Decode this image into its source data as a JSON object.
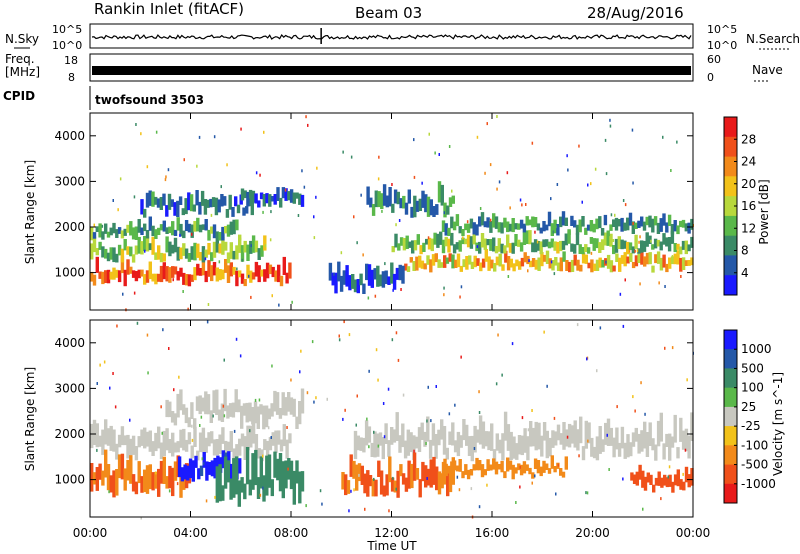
{
  "header": {
    "station": "Rankin Inlet (fitACF)",
    "beam": "Beam 03",
    "date": "28/Aug/2016"
  },
  "top_panels": {
    "nsky_label": "N.Sky",
    "nsearch_label": "N.Search",
    "freq_label_1": "Freq.",
    "freq_label_2": "[MHz]",
    "nave_label": "Nave",
    "cpid_label": "CPID",
    "cpid_value": "twofsound 3503",
    "nsky_ticks": [
      "10^5",
      "10^0"
    ],
    "nsearch_ticks": [
      "10^5",
      "10^0"
    ],
    "freq_ticks": [
      "18",
      "8"
    ],
    "nave_ticks": [
      "60",
      "0"
    ]
  },
  "colors": {
    "power_scale": [
      "#1a1aff",
      "#2458a8",
      "#3a8a66",
      "#5ab84a",
      "#b8d83c",
      "#f2c21a",
      "#f28a1a",
      "#f0501a",
      "#e81a1a"
    ],
    "velocity_scale": [
      "#1a1aff",
      "#2458a8",
      "#3a8a66",
      "#5ab84a",
      "#c8c8c0",
      "#f2c21a",
      "#f28a1a",
      "#f0501a",
      "#e81a1a"
    ],
    "ground_scatter": "#c8c8c0"
  },
  "chart_data": [
    {
      "type": "heatmap",
      "panel": "power",
      "ylabel": "Slant Range [km]",
      "xlabel": "",
      "ylim": [
        180,
        4500
      ],
      "yticks": [
        "1000",
        "2000",
        "3000",
        "4000"
      ],
      "colorbar_label": "Power [dB]",
      "colorbar_ticks": [
        "28",
        "24",
        "20",
        "16",
        "12",
        "8",
        "4"
      ],
      "colorbar_range": [
        0,
        32
      ],
      "x": [
        "00:00",
        "04:00",
        "08:00",
        "12:00",
        "16:00",
        "20:00",
        "00:00"
      ],
      "bands": [
        {
          "t0": 0.0,
          "t1": 8.0,
          "r0": 700,
          "r1": 1200,
          "value": 27
        },
        {
          "t0": 0.0,
          "t1": 7.0,
          "r0": 1200,
          "r1": 1700,
          "value": 14
        },
        {
          "t0": 0.0,
          "t1": 6.0,
          "r0": 1700,
          "r1": 2100,
          "value": 10
        },
        {
          "t0": 2.0,
          "t1": 6.5,
          "r0": 2200,
          "r1": 2700,
          "value": 7
        },
        {
          "t0": 6.0,
          "t1": 8.5,
          "r0": 2400,
          "r1": 2800,
          "value": 6
        },
        {
          "t0": 11.0,
          "t1": 14.5,
          "r0": 2200,
          "r1": 2800,
          "value": 8
        },
        {
          "t0": 12.5,
          "t1": 24.0,
          "r0": 1000,
          "r1": 1400,
          "value": 21
        },
        {
          "t0": 12.0,
          "t1": 24.0,
          "r0": 1400,
          "r1": 1800,
          "value": 13
        },
        {
          "t0": 14.0,
          "t1": 24.0,
          "r0": 1800,
          "r1": 2200,
          "value": 9
        },
        {
          "t0": 9.5,
          "t1": 12.5,
          "r0": 500,
          "r1": 1100,
          "value": 5
        }
      ]
    },
    {
      "type": "heatmap",
      "panel": "velocity",
      "ylabel": "Slant Range [km]",
      "xlabel": "Time UT",
      "ylim": [
        180,
        4500
      ],
      "yticks": [
        "1000",
        "2000",
        "3000",
        "4000"
      ],
      "colorbar_label": "Velocity [m s^-1]",
      "colorbar_ticks": [
        "1000",
        "500",
        "100",
        "25",
        "-25",
        "-100",
        "-500",
        "-1000"
      ],
      "x": [
        "00:00",
        "04:00",
        "08:00",
        "12:00",
        "16:00",
        "20:00",
        "00:00"
      ],
      "bands": [
        {
          "t0": 0.0,
          "t1": 8.0,
          "r0": 1400,
          "r1": 2100,
          "value": 0
        },
        {
          "t0": 3.0,
          "t1": 8.5,
          "r0": 2100,
          "r1": 2800,
          "value": 0
        },
        {
          "t0": 10.5,
          "t1": 24.0,
          "r0": 1400,
          "r1": 2200,
          "value": 0
        },
        {
          "t0": 0.0,
          "t1": 4.0,
          "r0": 600,
          "r1": 1400,
          "value": -300
        },
        {
          "t0": 3.5,
          "t1": 6.0,
          "r0": 900,
          "r1": 1500,
          "value": 900
        },
        {
          "t0": 5.0,
          "t1": 8.5,
          "r0": 400,
          "r1": 1500,
          "value": 150
        },
        {
          "t0": 10.0,
          "t1": 14.5,
          "r0": 600,
          "r1": 1400,
          "value": -300
        },
        {
          "t0": 14.0,
          "t1": 19.0,
          "r0": 1000,
          "r1": 1400,
          "value": -150
        },
        {
          "t0": 21.5,
          "t1": 24.0,
          "r0": 700,
          "r1": 1200,
          "value": -400
        }
      ]
    }
  ],
  "footer": {
    "time_ticks": [
      "00:00",
      "04:00",
      "08:00",
      "12:00",
      "16:00",
      "20:00",
      "00:00"
    ],
    "xlabel": "Time UT"
  }
}
